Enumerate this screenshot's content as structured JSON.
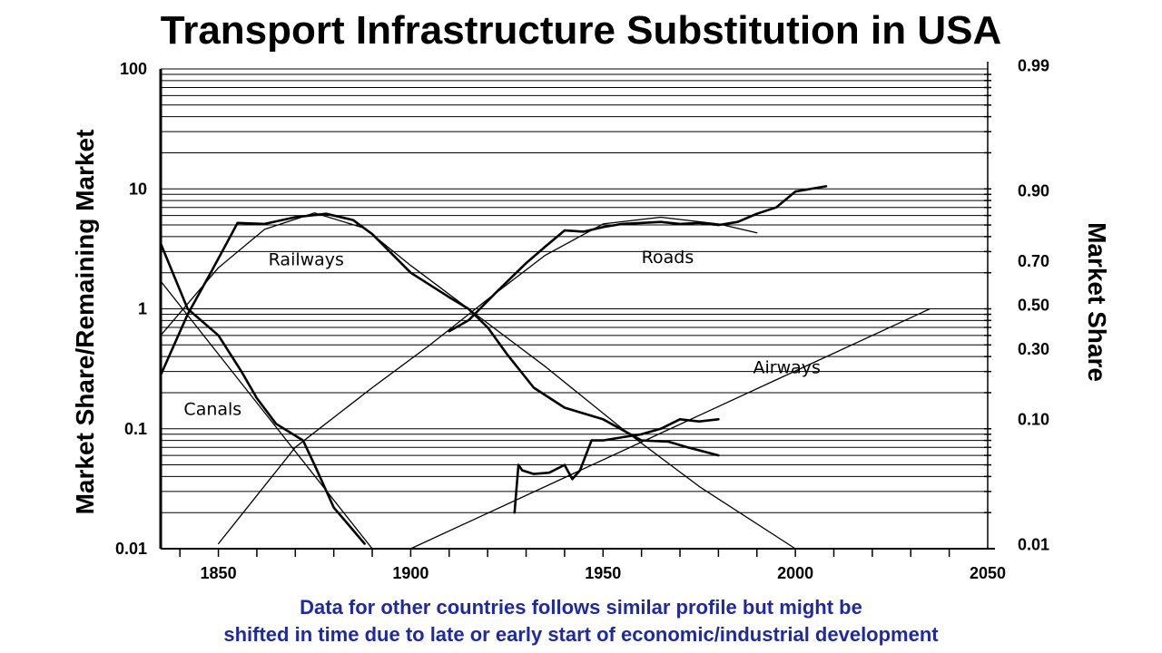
{
  "chart_data": {
    "type": "line",
    "title": "Transport Infrastructure Substitution in USA",
    "ylabel": "Market Share/Remaining Market",
    "ylabel_right": "Market Share",
    "x_scale": "linear",
    "y_scale": "log",
    "xlim": [
      1835,
      2050
    ],
    "ylim": [
      0.01,
      100
    ],
    "x_ticks": [
      1850,
      1900,
      1950,
      2000,
      2050
    ],
    "x_tick_labels": [
      "1850",
      "1900",
      "1950",
      "2000",
      "2050"
    ],
    "y_ticks": [
      0.01,
      0.1,
      1,
      10,
      100
    ],
    "y_tick_labels": [
      "0.01",
      "0.1",
      "1",
      "10",
      "100"
    ],
    "right_tick_labels": [
      {
        "label": "0.99",
        "ratio": 99
      },
      {
        "label": "0.90",
        "ratio": 9
      },
      {
        "label": "0.70",
        "ratio": 2.333
      },
      {
        "label": "0.50",
        "ratio": 1
      },
      {
        "label": "0.30",
        "ratio": 0.4286
      },
      {
        "label": "0.10",
        "ratio": 0.1111
      },
      {
        "label": "0.01",
        "ratio": 0.0101
      }
    ],
    "grid": "horizontal",
    "series": [
      {
        "name": "Canals",
        "kind": "data",
        "x": [
          1835,
          1842,
          1850,
          1856,
          1860,
          1865,
          1872,
          1875,
          1880,
          1883,
          1888
        ],
        "y": [
          3.5,
          1,
          0.6,
          0.3,
          0.18,
          0.11,
          0.08,
          0.05,
          0.022,
          0.017,
          0.011
        ]
      },
      {
        "name": "Canals",
        "kind": "fit",
        "x": [
          1835,
          1890
        ],
        "y": [
          1.7,
          0.01
        ]
      },
      {
        "name": "Railways",
        "kind": "data",
        "x": [
          1835,
          1842,
          1848,
          1855,
          1862,
          1870,
          1878,
          1885,
          1890,
          1900,
          1910,
          1915,
          1920,
          1925,
          1932,
          1940,
          1950,
          1960,
          1967,
          1972,
          1980
        ],
        "y": [
          0.28,
          0.9,
          2,
          5.2,
          5.1,
          5.8,
          6.2,
          5.5,
          4.2,
          2.0,
          1.25,
          1.0,
          0.7,
          0.42,
          0.22,
          0.15,
          0.12,
          0.08,
          0.078,
          0.07,
          0.06
        ]
      },
      {
        "name": "Railways",
        "kind": "fit",
        "x": [
          1835,
          1850,
          1862,
          1875,
          1888,
          1900,
          1915,
          1935,
          1955,
          1975,
          2000
        ],
        "y": [
          0.6,
          2.2,
          4.6,
          6.3,
          4.7,
          2.3,
          1.0,
          0.33,
          0.1,
          0.033,
          0.01
        ]
      },
      {
        "name": "Roads",
        "kind": "data",
        "x": [
          1910,
          1915,
          1918,
          1922,
          1926,
          1930,
          1935,
          1940,
          1945,
          1950,
          1955,
          1960,
          1965,
          1970,
          1975,
          1980,
          1985,
          1990,
          1995,
          2000,
          2008
        ],
        "y": [
          0.65,
          0.8,
          1.0,
          1.35,
          1.8,
          2.4,
          3.3,
          4.5,
          4.4,
          4.8,
          5.1,
          5.2,
          5.3,
          5.1,
          5.2,
          5.0,
          5.3,
          6.2,
          7.0,
          9.5,
          10.5
        ]
      },
      {
        "name": "Roads",
        "kind": "fit",
        "x": [
          1850,
          1870,
          1890,
          1905,
          1920,
          1935,
          1950,
          1965,
          1980,
          1990
        ],
        "y": [
          0.011,
          0.07,
          0.22,
          0.5,
          1.2,
          2.8,
          5.1,
          5.8,
          5.1,
          4.3
        ]
      },
      {
        "name": "Airways",
        "kind": "data",
        "x": [
          1927,
          1928,
          1929,
          1932,
          1936,
          1940,
          1942,
          1944,
          1947,
          1950,
          1955,
          1960,
          1965,
          1970,
          1975,
          1980
        ],
        "y": [
          0.02,
          0.05,
          0.045,
          0.042,
          0.043,
          0.05,
          0.038,
          0.045,
          0.08,
          0.08,
          0.085,
          0.09,
          0.1,
          0.12,
          0.115,
          0.12
        ]
      },
      {
        "name": "Airways",
        "kind": "fit",
        "x": [
          1900,
          2035
        ],
        "y": [
          0.01,
          1
        ]
      }
    ],
    "annotations": [
      {
        "text": "Canals",
        "x": 1841,
        "y": 0.13
      },
      {
        "text": "Railways",
        "x": 1863,
        "y": 2.3
      },
      {
        "text": "Roads",
        "x": 1960,
        "y": 2.4
      },
      {
        "text": "Airways",
        "x": 1989,
        "y": 0.29
      }
    ]
  },
  "caption": {
    "line1": "Data for other countries follows similar profile but might be",
    "line2": "shifted in time due to late or early start of economic/industrial development"
  }
}
